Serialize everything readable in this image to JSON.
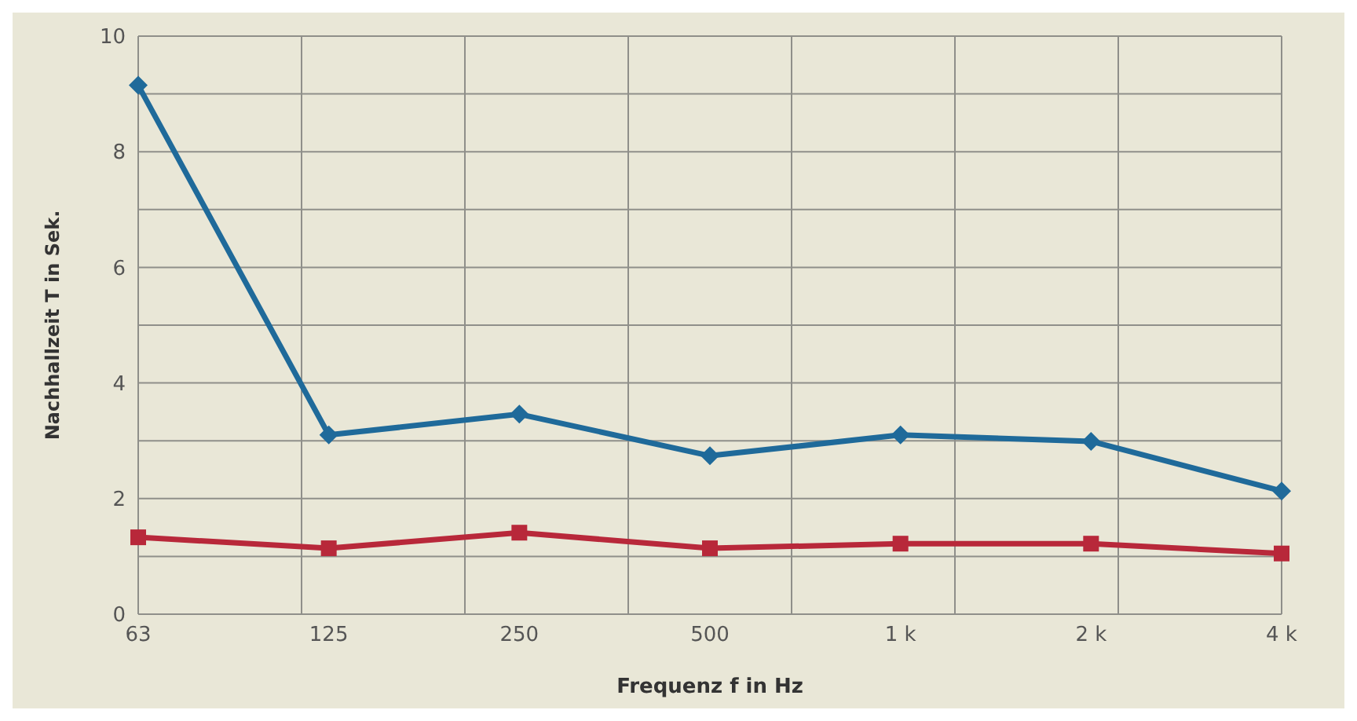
{
  "chart_data": {
    "type": "line",
    "xlabel": "Frequenz  f  in Hz",
    "ylabel": "Nachhallzeit T in Sek.",
    "categories": [
      "63",
      "125",
      "250",
      "500",
      "1 k",
      "2 k",
      "4 k"
    ],
    "series": [
      {
        "color": "#1f6a9a",
        "marker": "diamond",
        "values": [
          9.15,
          3.1,
          3.46,
          2.74,
          3.1,
          2.99,
          2.13
        ]
      },
      {
        "color": "#b8283a",
        "marker": "square",
        "values": [
          1.33,
          1.14,
          1.41,
          1.14,
          1.22,
          1.22,
          1.05
        ]
      }
    ],
    "ylim": [
      0,
      10
    ],
    "yticks": [
      0,
      {
        "value": 1,
        "label": null
      },
      2,
      {
        "value": 3,
        "label": null
      },
      4,
      {
        "value": 5,
        "label": null
      },
      6,
      {
        "value": 7,
        "label": null
      },
      8,
      {
        "value": 9,
        "label": null
      },
      10
    ],
    "grid": true,
    "legend": false
  }
}
